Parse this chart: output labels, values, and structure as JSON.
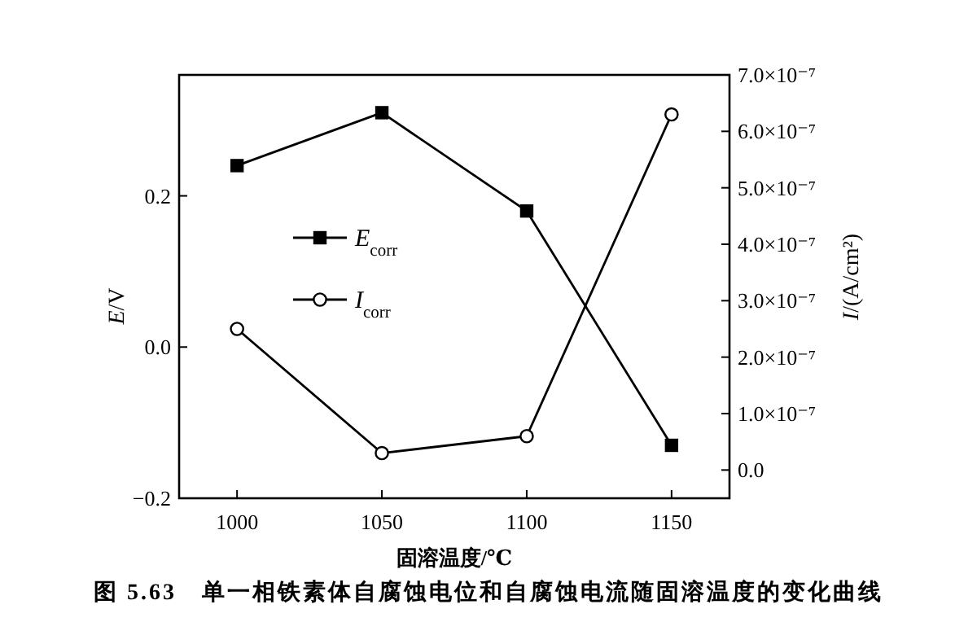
{
  "chart_data": {
    "type": "line",
    "xlabel": "固溶温度/℃",
    "ylabel": "*E*/V",
    "y2label": "*I*/(A/cm²)",
    "annotations": [
      "图 5.63　单一相铁素体自腐蚀电位和自腐蚀电流随固溶温度的变化曲线"
    ],
    "x": [
      1000,
      1050,
      1100,
      1150
    ],
    "xlim": [
      980,
      1170
    ],
    "xticks": [
      1000,
      1050,
      1100,
      1150
    ],
    "ylim": [
      -0.2,
      0.36
    ],
    "yticks": [
      {
        "value": -0.2,
        "label": "−0.2"
      },
      {
        "value": 0,
        "label": "0.0"
      },
      0.2
    ],
    "y2lim": [
      -5e-08,
      7e-07
    ],
    "y2ticks": [
      {
        "value": 0,
        "label": "0.0"
      },
      {
        "value": 1e-07,
        "label": "1.0×10⁻⁷"
      },
      {
        "value": 2e-07,
        "label": "2.0×10⁻⁷"
      },
      {
        "value": 3e-07,
        "label": "3.0×10⁻⁷"
      },
      {
        "value": 4e-07,
        "label": "4.0×10⁻⁷"
      },
      {
        "value": 5e-07,
        "label": "5.0×10⁻⁷"
      },
      {
        "value": 6e-07,
        "label": "6.0×10⁻⁷"
      },
      {
        "value": 7e-07,
        "label": "7.0×10⁻⁷"
      }
    ],
    "series": [
      {
        "name": "*E*$_{corr}$",
        "color": "#000000",
        "marker": "square",
        "values": [
          0.24,
          0.31,
          0.18,
          -0.13
        ]
      },
      {
        "name": "*I*$_{corr}$",
        "color": "#000000",
        "marker": "circle",
        "axis": "y2",
        "values": [
          2.5e-07,
          3e-08,
          6e-08,
          6.3e-07
        ]
      }
    ],
    "legend": "left"
  }
}
